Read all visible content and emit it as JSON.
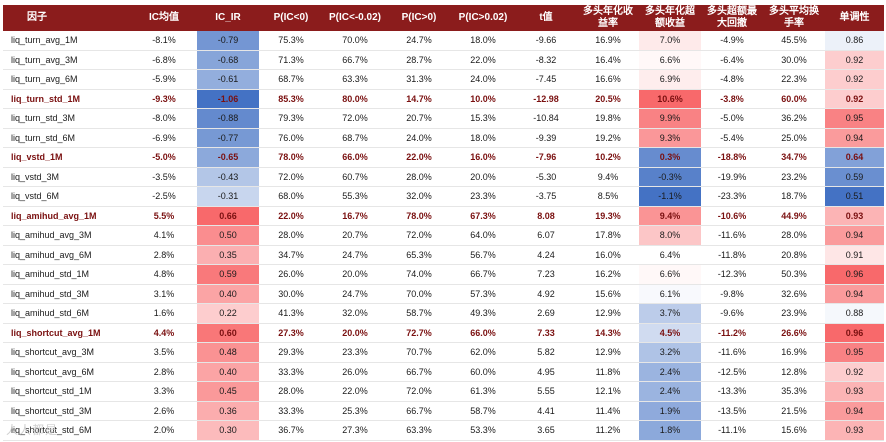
{
  "columns": [
    "因子",
    "IC均值",
    "IC_IR",
    "P(IC<0)",
    "P(IC<-0.02)",
    "P(IC>0)",
    "P(IC>0.02)",
    "t值",
    "多头年化收益率",
    "多头年化超额收益",
    "多头超额最大回撤",
    "多头平均换手率",
    "单调性"
  ],
  "rows": [
    {
      "highlight": false,
      "cells": [
        "liq_turn_avg_1M",
        "-8.1%",
        "-0.79",
        "75.3%",
        "70.0%",
        "24.7%",
        "18.0%",
        "-9.66",
        "16.9%",
        "7.0%",
        "-4.9%",
        "45.5%",
        "0.86"
      ]
    },
    {
      "highlight": false,
      "cells": [
        "liq_turn_avg_3M",
        "-6.8%",
        "-0.68",
        "71.3%",
        "66.7%",
        "28.7%",
        "22.0%",
        "-8.32",
        "16.4%",
        "6.6%",
        "-6.4%",
        "30.0%",
        "0.92"
      ]
    },
    {
      "highlight": false,
      "cells": [
        "liq_turn_avg_6M",
        "-5.9%",
        "-0.61",
        "68.7%",
        "63.3%",
        "31.3%",
        "24.0%",
        "-7.45",
        "16.6%",
        "6.9%",
        "-4.8%",
        "22.3%",
        "0.92"
      ]
    },
    {
      "highlight": true,
      "cells": [
        "liq_turn_std_1M",
        "-9.3%",
        "-1.06",
        "85.3%",
        "80.0%",
        "14.7%",
        "10.0%",
        "-12.98",
        "20.5%",
        "10.6%",
        "-3.8%",
        "60.0%",
        "0.92"
      ]
    },
    {
      "highlight": false,
      "cells": [
        "liq_turn_std_3M",
        "-8.0%",
        "-0.88",
        "79.3%",
        "72.0%",
        "20.7%",
        "15.3%",
        "-10.84",
        "19.8%",
        "9.9%",
        "-5.0%",
        "36.2%",
        "0.95"
      ]
    },
    {
      "highlight": false,
      "cells": [
        "liq_turn_std_6M",
        "-6.9%",
        "-0.77",
        "76.0%",
        "68.7%",
        "24.0%",
        "18.0%",
        "-9.39",
        "19.2%",
        "9.3%",
        "-5.4%",
        "25.0%",
        "0.94"
      ]
    },
    {
      "highlight": true,
      "cells": [
        "liq_vstd_1M",
        "-5.0%",
        "-0.65",
        "78.0%",
        "66.0%",
        "22.0%",
        "16.0%",
        "-7.96",
        "10.2%",
        "0.3%",
        "-18.8%",
        "34.7%",
        "0.64"
      ]
    },
    {
      "highlight": false,
      "cells": [
        "liq_vstd_3M",
        "-3.5%",
        "-0.43",
        "72.0%",
        "60.7%",
        "28.0%",
        "20.0%",
        "-5.30",
        "9.4%",
        "-0.3%",
        "-19.9%",
        "23.2%",
        "0.59"
      ]
    },
    {
      "highlight": false,
      "cells": [
        "liq_vstd_6M",
        "-2.5%",
        "-0.31",
        "68.0%",
        "55.3%",
        "32.0%",
        "23.3%",
        "-3.75",
        "8.5%",
        "-1.1%",
        "-23.3%",
        "18.7%",
        "0.51"
      ]
    },
    {
      "highlight": true,
      "cells": [
        "liq_amihud_avg_1M",
        "5.5%",
        "0.66",
        "22.0%",
        "16.7%",
        "78.0%",
        "67.3%",
        "8.08",
        "19.3%",
        "9.4%",
        "-10.6%",
        "44.9%",
        "0.93"
      ]
    },
    {
      "highlight": false,
      "cells": [
        "liq_amihud_avg_3M",
        "4.1%",
        "0.50",
        "28.0%",
        "20.7%",
        "72.0%",
        "64.0%",
        "6.07",
        "17.8%",
        "8.0%",
        "-11.6%",
        "28.0%",
        "0.94"
      ]
    },
    {
      "highlight": false,
      "cells": [
        "liq_amihud_avg_6M",
        "2.8%",
        "0.35",
        "34.7%",
        "24.7%",
        "65.3%",
        "56.7%",
        "4.24",
        "16.0%",
        "6.4%",
        "-11.8%",
        "20.8%",
        "0.91"
      ]
    },
    {
      "highlight": false,
      "cells": [
        "liq_amihud_std_1M",
        "4.8%",
        "0.59",
        "26.0%",
        "20.0%",
        "74.0%",
        "66.7%",
        "7.23",
        "16.2%",
        "6.6%",
        "-12.3%",
        "50.3%",
        "0.96"
      ]
    },
    {
      "highlight": false,
      "cells": [
        "liq_amihud_std_3M",
        "3.1%",
        "0.40",
        "30.0%",
        "24.7%",
        "70.0%",
        "57.3%",
        "4.92",
        "15.6%",
        "6.1%",
        "-9.8%",
        "32.6%",
        "0.94"
      ]
    },
    {
      "highlight": false,
      "cells": [
        "liq_amihud_std_6M",
        "1.6%",
        "0.22",
        "41.3%",
        "32.0%",
        "58.7%",
        "49.3%",
        "2.69",
        "12.9%",
        "3.7%",
        "-9.6%",
        "23.9%",
        "0.88"
      ]
    },
    {
      "highlight": true,
      "cells": [
        "liq_shortcut_avg_1M",
        "4.4%",
        "0.60",
        "27.3%",
        "20.0%",
        "72.7%",
        "66.0%",
        "7.33",
        "14.3%",
        "4.5%",
        "-11.2%",
        "26.6%",
        "0.96"
      ]
    },
    {
      "highlight": false,
      "cells": [
        "liq_shortcut_avg_3M",
        "3.5%",
        "0.48",
        "29.3%",
        "23.3%",
        "70.7%",
        "62.0%",
        "5.82",
        "12.9%",
        "3.2%",
        "-11.6%",
        "16.9%",
        "0.95"
      ]
    },
    {
      "highlight": false,
      "cells": [
        "liq_shortcut_avg_6M",
        "2.8%",
        "0.40",
        "33.3%",
        "26.0%",
        "66.7%",
        "60.0%",
        "4.95",
        "11.8%",
        "2.4%",
        "-12.5%",
        "12.8%",
        "0.92"
      ]
    },
    {
      "highlight": false,
      "cells": [
        "liq_shortcut_std_1M",
        "3.3%",
        "0.45",
        "28.0%",
        "22.0%",
        "72.0%",
        "61.3%",
        "5.55",
        "12.1%",
        "2.4%",
        "-13.3%",
        "35.3%",
        "0.93"
      ]
    },
    {
      "highlight": false,
      "cells": [
        "liq_shortcut_std_3M",
        "2.6%",
        "0.36",
        "33.3%",
        "25.3%",
        "66.7%",
        "58.7%",
        "4.41",
        "11.4%",
        "1.9%",
        "-13.5%",
        "21.5%",
        "0.94"
      ]
    },
    {
      "highlight": false,
      "cells": [
        "liq_shortcut_std_6M",
        "2.0%",
        "0.30",
        "36.7%",
        "27.3%",
        "63.3%",
        "53.3%",
        "3.65",
        "11.2%",
        "1.8%",
        "-11.1%",
        "15.6%",
        "0.93"
      ]
    }
  ],
  "watermark": "人人都是"
}
